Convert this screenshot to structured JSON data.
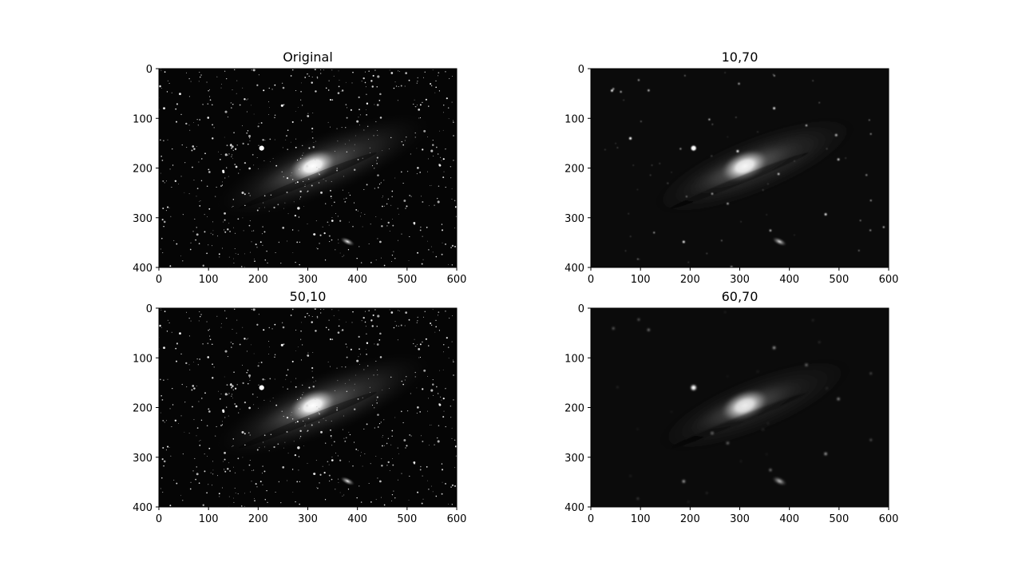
{
  "chart_data": [
    {
      "type": "image",
      "title": "Original",
      "image_width": 600,
      "image_height": 400,
      "x_ticks": [
        0,
        100,
        200,
        300,
        400,
        500,
        600
      ],
      "y_ticks": [
        0,
        100,
        200,
        300,
        400
      ],
      "xlim": [
        0,
        600
      ],
      "ylim": [
        400,
        0
      ],
      "grid": false,
      "colormap": "gray",
      "content": {
        "stars": "dense",
        "galaxy_brightness": 1.0,
        "halo": 0.55,
        "blur": 0
      }
    },
    {
      "type": "image",
      "title": "10,70",
      "image_width": 600,
      "image_height": 400,
      "x_ticks": [
        0,
        100,
        200,
        300,
        400,
        500,
        600
      ],
      "y_ticks": [
        0,
        100,
        200,
        300,
        400
      ],
      "xlim": [
        0,
        600
      ],
      "ylim": [
        400,
        0
      ],
      "grid": false,
      "colormap": "gray",
      "content": {
        "stars": "sparse",
        "galaxy_brightness": 0.95,
        "halo": 0.45,
        "blur": 1.4
      }
    },
    {
      "type": "image",
      "title": "50,10",
      "image_width": 600,
      "image_height": 400,
      "x_ticks": [
        0,
        100,
        200,
        300,
        400,
        500,
        600
      ],
      "y_ticks": [
        0,
        100,
        200,
        300,
        400
      ],
      "xlim": [
        0,
        600
      ],
      "ylim": [
        400,
        0
      ],
      "grid": false,
      "colormap": "gray",
      "content": {
        "stars": "dense",
        "galaxy_brightness": 1.0,
        "halo": 0.6,
        "blur": 0
      }
    },
    {
      "type": "image",
      "title": "60,70",
      "image_width": 600,
      "image_height": 400,
      "x_ticks": [
        0,
        100,
        200,
        300,
        400,
        500,
        600
      ],
      "y_ticks": [
        0,
        100,
        200,
        300,
        400
      ],
      "xlim": [
        0,
        600
      ],
      "ylim": [
        400,
        0
      ],
      "grid": false,
      "colormap": "gray",
      "content": {
        "stars": "very-sparse",
        "galaxy_brightness": 0.9,
        "halo": 0.3,
        "blur": 2.0
      }
    }
  ]
}
